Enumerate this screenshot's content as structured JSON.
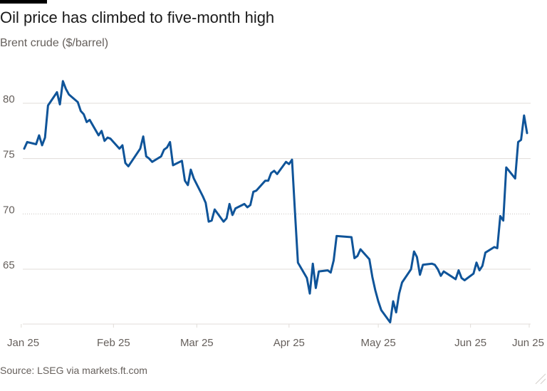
{
  "header": {
    "title": "Oil price has climbed to five-month high",
    "subtitle": "Brent crude ($/barrel)"
  },
  "footer": {
    "source": "Source: LSEG via markets.ft.com"
  },
  "chart_data": {
    "type": "line",
    "title": "Oil price has climbed to five-month high",
    "subtitle": "Brent crude ($/barrel)",
    "xlabel": "",
    "ylabel": "",
    "x_ticks": [
      "Jan 25",
      "Feb 25",
      "Mar 25",
      "Apr 25",
      "May 25",
      "Jun 25",
      "Jun 25"
    ],
    "y_ticks": [
      65,
      70,
      75,
      80
    ],
    "ylim": [
      60,
      85
    ],
    "grid": true,
    "colors": {
      "series": "#0f5499"
    },
    "series": [
      {
        "name": "",
        "x": [
          "2025-01-02",
          "2025-01-03",
          "2025-01-06",
          "2025-01-07",
          "2025-01-08",
          "2025-01-09",
          "2025-01-10",
          "2025-01-13",
          "2025-01-14",
          "2025-01-15",
          "2025-01-16",
          "2025-01-17",
          "2025-01-20",
          "2025-01-21",
          "2025-01-22",
          "2025-01-23",
          "2025-01-24",
          "2025-01-27",
          "2025-01-28",
          "2025-01-29",
          "2025-01-30",
          "2025-01-31",
          "2025-02-03",
          "2025-02-04",
          "2025-02-05",
          "2025-02-06",
          "2025-02-07",
          "2025-02-10",
          "2025-02-11",
          "2025-02-12",
          "2025-02-13",
          "2025-02-14",
          "2025-02-17",
          "2025-02-18",
          "2025-02-19",
          "2025-02-20",
          "2025-02-21",
          "2025-02-24",
          "2025-02-25",
          "2025-02-26",
          "2025-02-27",
          "2025-02-28",
          "2025-03-03",
          "2025-03-04",
          "2025-03-05",
          "2025-03-06",
          "2025-03-07",
          "2025-03-10",
          "2025-03-11",
          "2025-03-12",
          "2025-03-13",
          "2025-03-14",
          "2025-03-17",
          "2025-03-18",
          "2025-03-19",
          "2025-03-20",
          "2025-03-21",
          "2025-03-24",
          "2025-03-25",
          "2025-03-26",
          "2025-03-27",
          "2025-03-28",
          "2025-03-31",
          "2025-04-01",
          "2025-04-02",
          "2025-04-03",
          "2025-04-04",
          "2025-04-07",
          "2025-04-08",
          "2025-04-09",
          "2025-04-10",
          "2025-04-11",
          "2025-04-14",
          "2025-04-15",
          "2025-04-16",
          "2025-04-17",
          "2025-04-22",
          "2025-04-23",
          "2025-04-24",
          "2025-04-25",
          "2025-04-28",
          "2025-04-29",
          "2025-04-30",
          "2025-05-01",
          "2025-05-02",
          "2025-05-05",
          "2025-05-06",
          "2025-05-07",
          "2025-05-08",
          "2025-05-09",
          "2025-05-12",
          "2025-05-13",
          "2025-05-14",
          "2025-05-15",
          "2025-05-16",
          "2025-05-19",
          "2025-05-20",
          "2025-05-21",
          "2025-05-22",
          "2025-05-23",
          "2025-05-27",
          "2025-05-28",
          "2025-05-29",
          "2025-05-30",
          "2025-06-02",
          "2025-06-03",
          "2025-06-04",
          "2025-06-05",
          "2025-06-06",
          "2025-06-09",
          "2025-06-10",
          "2025-06-11",
          "2025-06-12",
          "2025-06-13",
          "2025-06-16",
          "2025-06-17",
          "2025-06-18",
          "2025-06-19",
          "2025-06-20"
        ],
        "values": [
          75.9,
          76.5,
          76.3,
          77.1,
          76.2,
          76.9,
          79.8,
          81.0,
          79.9,
          82.0,
          81.3,
          80.8,
          80.1,
          79.3,
          79.0,
          78.3,
          78.5,
          77.1,
          77.5,
          76.6,
          76.9,
          76.8,
          75.9,
          76.2,
          74.6,
          74.3,
          74.7,
          75.9,
          77.0,
          75.2,
          75.0,
          74.7,
          75.2,
          75.8,
          76.0,
          76.5,
          74.4,
          74.8,
          73.0,
          72.6,
          74.0,
          73.2,
          71.6,
          71.0,
          69.3,
          69.4,
          70.4,
          69.3,
          69.6,
          70.9,
          69.9,
          70.5,
          70.9,
          70.6,
          70.8,
          72.0,
          72.1,
          73.0,
          73.0,
          73.7,
          73.9,
          73.6,
          74.7,
          74.5,
          74.9,
          70.1,
          65.6,
          64.2,
          62.8,
          65.5,
          63.3,
          64.8,
          64.9,
          64.7,
          65.8,
          68.0,
          67.9,
          66.0,
          66.2,
          66.8,
          65.9,
          64.3,
          63.1,
          62.1,
          61.3,
          60.2,
          62.1,
          61.1,
          62.8,
          63.8,
          65.0,
          66.6,
          66.1,
          64.5,
          65.4,
          65.5,
          65.4,
          65.0,
          64.4,
          64.8,
          64.1,
          64.9,
          64.2,
          64.0,
          64.6,
          65.6,
          64.9,
          65.3,
          66.5,
          67.0,
          66.9,
          69.8,
          69.4,
          74.2,
          73.2,
          76.5,
          76.7,
          78.9,
          77.3
        ]
      }
    ]
  }
}
